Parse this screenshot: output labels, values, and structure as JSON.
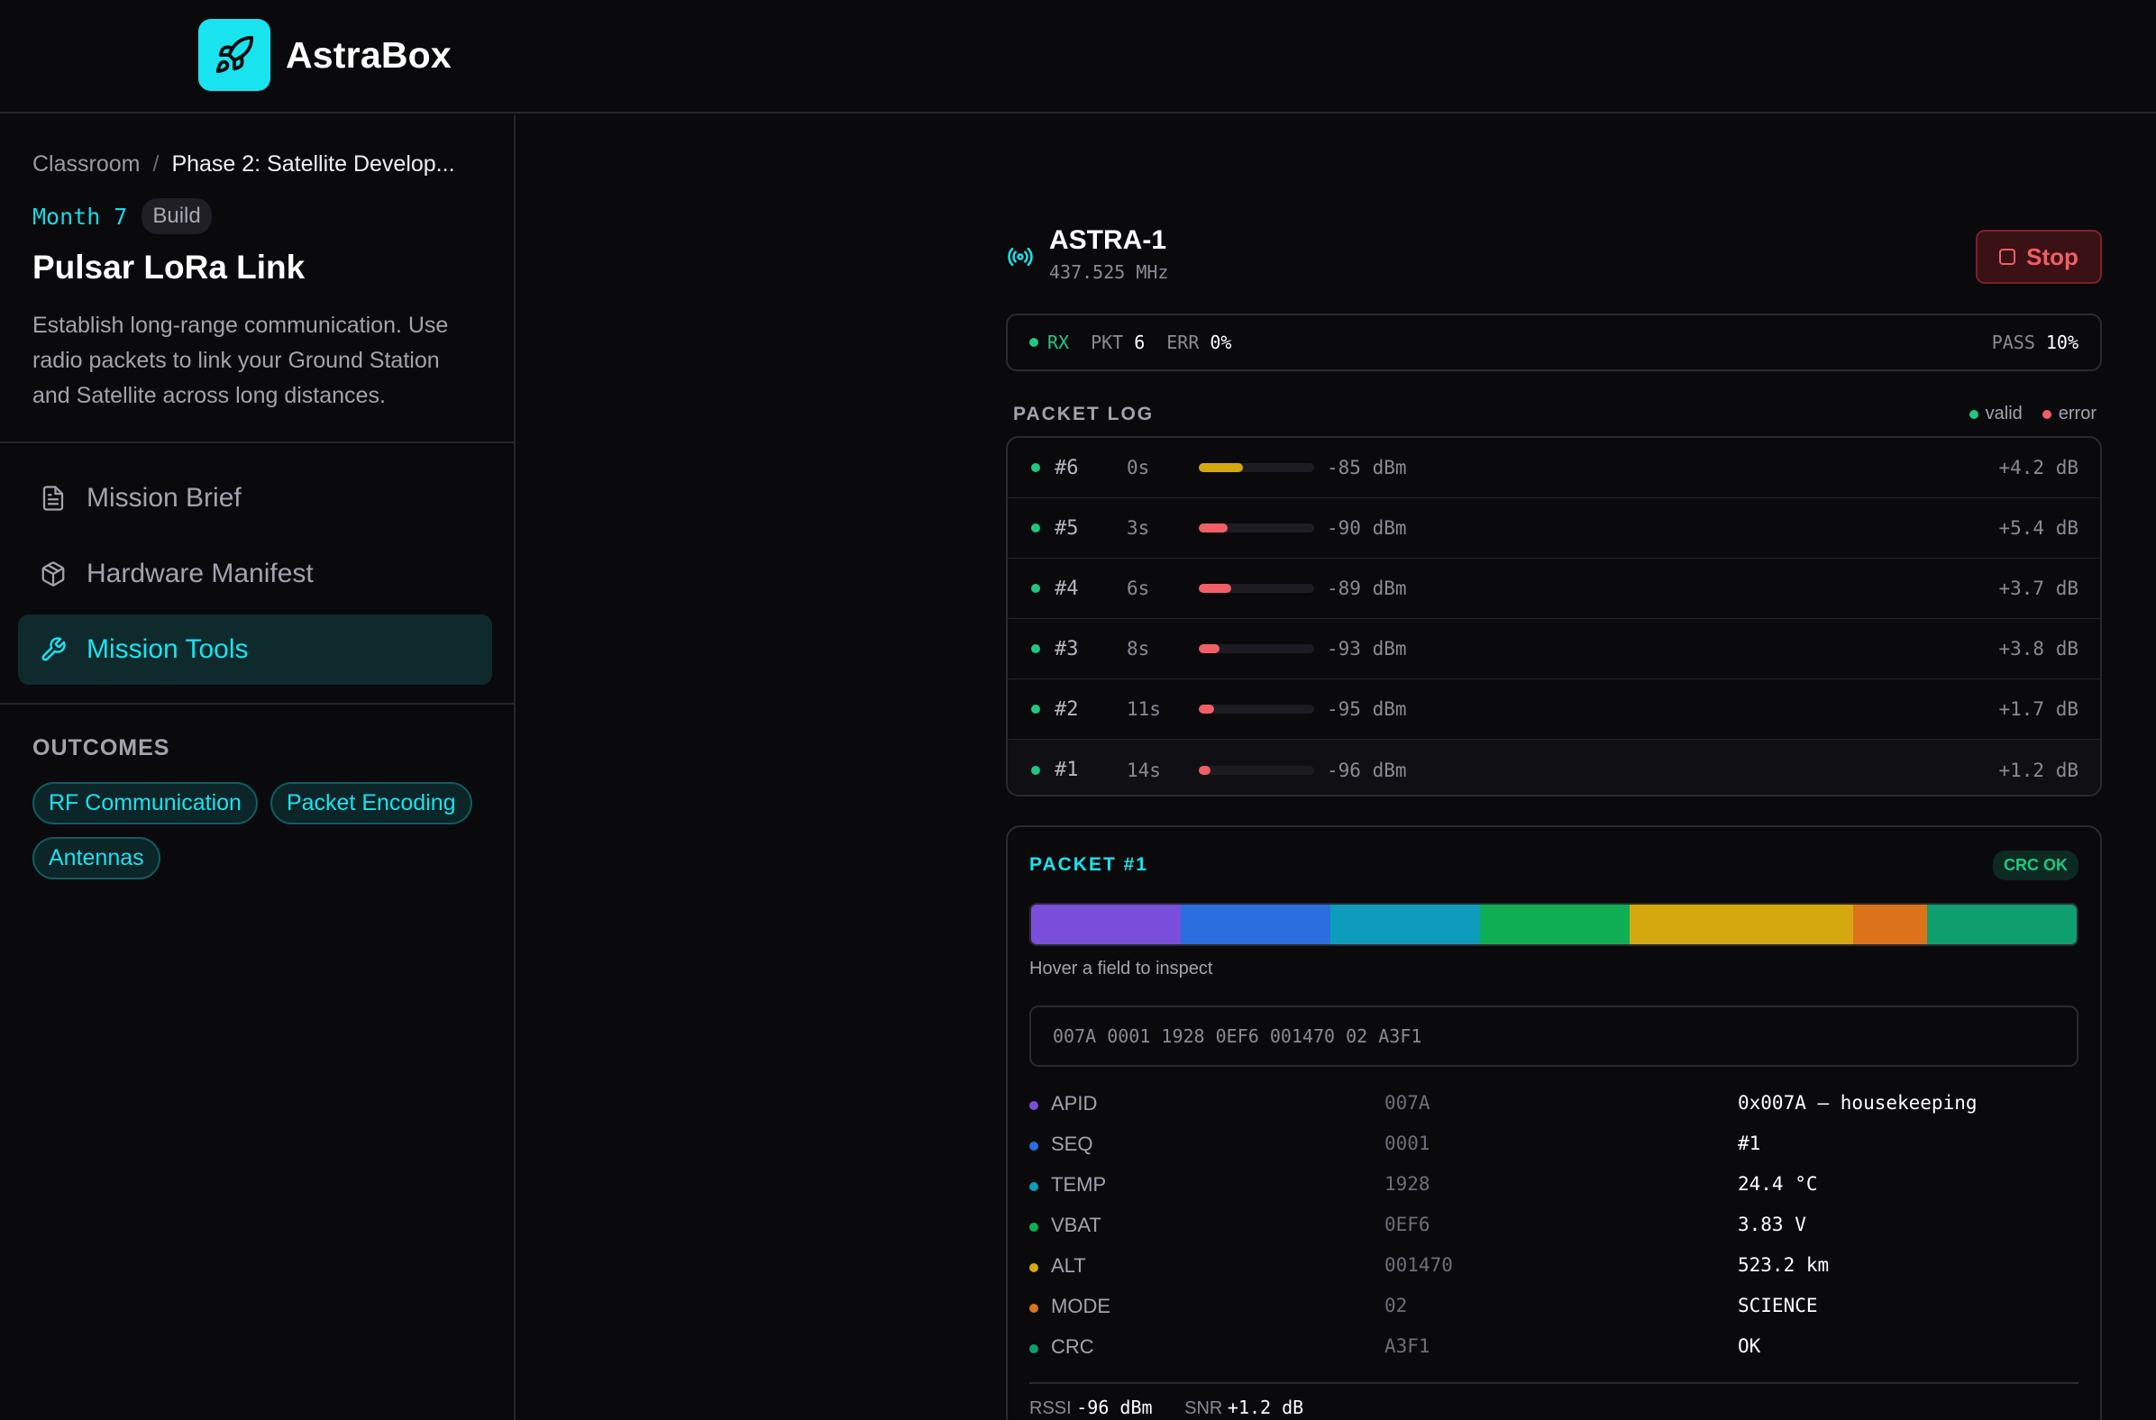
{
  "app": {
    "name": "AstraBox"
  },
  "sidebar": {
    "breadcrumb": {
      "root": "Classroom",
      "separator": "/",
      "current": "Phase 2: Satellite Develop..."
    },
    "month": "Month 7",
    "stage": "Build",
    "title": "Pulsar LoRa Link",
    "description": "Establish long-range communication. Use radio packets to link your Ground Station and Satellite across long distances.",
    "nav": [
      {
        "label": "Mission Brief",
        "icon": "document-icon",
        "active": false
      },
      {
        "label": "Hardware Manifest",
        "icon": "box-icon",
        "active": false
      },
      {
        "label": "Mission Tools",
        "icon": "wrench-icon",
        "active": true
      }
    ],
    "outcomes_label": "OUTCOMES",
    "outcomes": [
      "RF Communication",
      "Packet Encoding",
      "Antennas"
    ]
  },
  "radio": {
    "name": "ASTRA-1",
    "frequency": "437.525 MHz",
    "stop_label": "Stop"
  },
  "status": {
    "mode": "RX",
    "pkt_label": "PKT",
    "pkt_value": "6",
    "err_label": "ERR",
    "err_value": "0%",
    "pass_label": "PASS",
    "pass_value": "10%"
  },
  "log": {
    "title": "PACKET LOG",
    "legend_valid": "valid",
    "legend_error": "error",
    "rows": [
      {
        "id": "#6",
        "age": "0s",
        "rssi": "-85 dBm",
        "snr": "+4.2 dB",
        "signal": 0.38,
        "signal_color": "#d6a80f",
        "valid": true
      },
      {
        "id": "#5",
        "age": "3s",
        "rssi": "-90 dBm",
        "snr": "+5.4 dB",
        "signal": 0.25,
        "signal_color": "#f25e66",
        "valid": true
      },
      {
        "id": "#4",
        "age": "6s",
        "rssi": "-89 dBm",
        "snr": "+3.7 dB",
        "signal": 0.28,
        "signal_color": "#f25e66",
        "valid": true
      },
      {
        "id": "#3",
        "age": "8s",
        "rssi": "-93 dBm",
        "snr": "+3.8 dB",
        "signal": 0.18,
        "signal_color": "#f25e66",
        "valid": true
      },
      {
        "id": "#2",
        "age": "11s",
        "rssi": "-95 dBm",
        "snr": "+1.7 dB",
        "signal": 0.13,
        "signal_color": "#f25e66",
        "valid": true
      },
      {
        "id": "#1",
        "age": "14s",
        "rssi": "-96 dBm",
        "snr": "+1.2 dB",
        "signal": 0.1,
        "signal_color": "#f25e66",
        "valid": true
      }
    ]
  },
  "packet": {
    "title": "PACKET #1",
    "crc_badge": "CRC OK",
    "hint": "Hover a field to inspect",
    "hex": "007A 0001 1928 0EF6 001470 02 A3F1",
    "fields": [
      {
        "name": "APID",
        "hex": "007A",
        "value": "0x007A — housekeeping",
        "color": "#7b4fdc",
        "share": 0.143
      },
      {
        "name": "SEQ",
        "hex": "0001",
        "value": "#1",
        "color": "#2a6ee0",
        "share": 0.143
      },
      {
        "name": "TEMP",
        "hex": "1928",
        "value": "24.4 °C",
        "color": "#0f9cbc",
        "share": 0.143
      },
      {
        "name": "VBAT",
        "hex": "0EF6",
        "value": "3.83 V",
        "color": "#0fae54",
        "share": 0.143
      },
      {
        "name": "ALT",
        "hex": "001470",
        "value": "523.2 km",
        "color": "#d6a80f",
        "share": 0.214
      },
      {
        "name": "MODE",
        "hex": "02",
        "value": "SCIENCE",
        "color": "#dc731a",
        "share": 0.071
      },
      {
        "name": "CRC",
        "hex": "A3F1",
        "value": "OK",
        "color": "#0f9e6e",
        "share": 0.143
      }
    ],
    "footer": {
      "rssi_label": "RSSI",
      "rssi_value": "-96 dBm",
      "snr_label": "SNR",
      "snr_value": "+1.2 dB"
    }
  },
  "colors": {
    "accent": "#19e3ef",
    "valid": "#1ec882",
    "error": "#f25e66"
  }
}
